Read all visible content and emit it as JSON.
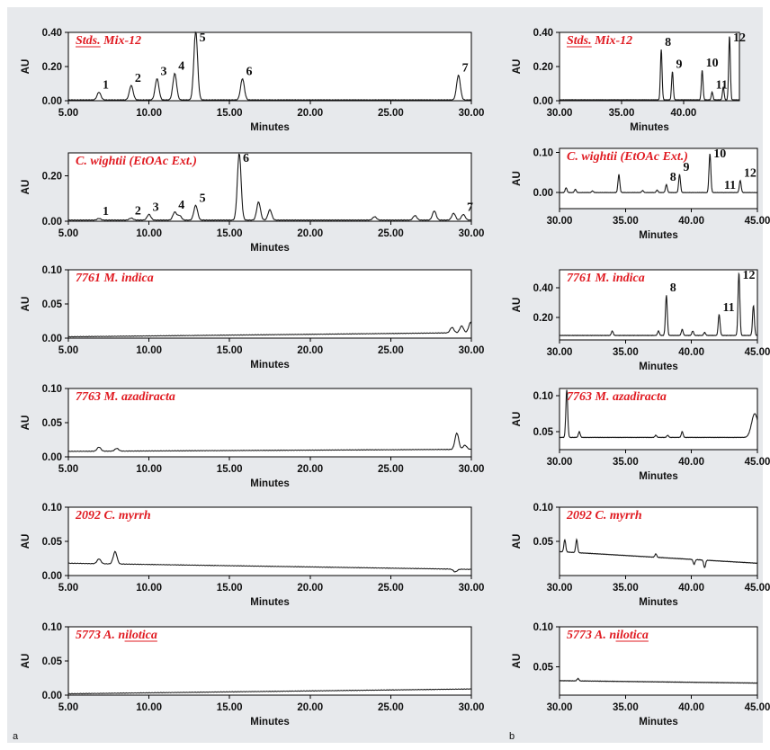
{
  "panel_labels": [
    "a",
    "b"
  ],
  "chart_data": [
    {
      "type": "line",
      "panel": "a",
      "title": "Stds. Mix-12",
      "xlabel": "Minutes",
      "ylabel": "AU",
      "xlim": [
        5,
        30
      ],
      "ylim": [
        0,
        0.4
      ],
      "xticks": [
        "5.00",
        "10.00",
        "15.00",
        "20.00",
        "25.00",
        "30.00"
      ],
      "yticks": [
        "0.00",
        "0.20",
        "0.40"
      ],
      "baseline": 0.005,
      "peaks": [
        {
          "label": "1",
          "x": 6.9,
          "y": 0.05
        },
        {
          "label": "2",
          "x": 8.9,
          "y": 0.09
        },
        {
          "label": "3",
          "x": 10.5,
          "y": 0.13
        },
        {
          "label": "4",
          "x": 11.6,
          "y": 0.16
        },
        {
          "label": "5",
          "x": 12.9,
          "y": 0.41
        },
        {
          "label": "6",
          "x": 15.8,
          "y": 0.13
        },
        {
          "label": "7",
          "x": 29.2,
          "y": 0.15
        }
      ],
      "minor": []
    },
    {
      "type": "line",
      "panel": "a",
      "title": "C. wightii (EtOAc Ext.)",
      "xlabel": "Minutes",
      "ylabel": "AU",
      "xlim": [
        5,
        30
      ],
      "ylim": [
        0,
        0.3
      ],
      "xticks": [
        "5.00",
        "10.00",
        "15.00",
        "20.00",
        "25.00",
        "30.00"
      ],
      "yticks": [
        "0.00",
        "0.20"
      ],
      "baseline": 0.005,
      "peaks": [
        {
          "label": "1",
          "x": 6.9,
          "y": 0.012
        },
        {
          "label": "2",
          "x": 8.9,
          "y": 0.014
        },
        {
          "label": "3",
          "x": 10.0,
          "y": 0.03
        },
        {
          "label": "4",
          "x": 11.6,
          "y": 0.04
        },
        {
          "label": "5",
          "x": 12.9,
          "y": 0.07
        },
        {
          "label": "6",
          "x": 15.6,
          "y": 0.3
        },
        {
          "label": "7",
          "x": 29.5,
          "y": 0.03
        }
      ],
      "minor": [
        {
          "x": 11.9,
          "y": 0.025
        },
        {
          "x": 16.8,
          "y": 0.085
        },
        {
          "x": 17.5,
          "y": 0.05
        },
        {
          "x": 24.0,
          "y": 0.02
        },
        {
          "x": 26.5,
          "y": 0.025
        },
        {
          "x": 27.7,
          "y": 0.045
        },
        {
          "x": 28.9,
          "y": 0.035
        }
      ]
    },
    {
      "type": "line",
      "panel": "a",
      "title": "7761 M. indica",
      "xlabel": "Minutes",
      "ylabel": "AU",
      "xlim": [
        5,
        30
      ],
      "ylim": [
        0,
        0.1
      ],
      "xticks": [
        "5.00",
        "10.00",
        "15.00",
        "20.00",
        "25.00",
        "30.00"
      ],
      "yticks": [
        "0.00",
        "0.05",
        "0.10"
      ],
      "baseline": 0.002,
      "drift": 0.006,
      "peaks": [],
      "minor": [
        {
          "x": 28.8,
          "y": 0.01
        },
        {
          "x": 29.4,
          "y": 0.012
        },
        {
          "x": 29.95,
          "y": 0.017
        }
      ]
    },
    {
      "type": "line",
      "panel": "a",
      "title": "7763 M. azadiracta",
      "xlabel": "Minutes",
      "ylabel": "AU",
      "xlim": [
        5,
        30
      ],
      "ylim": [
        0,
        0.1
      ],
      "xticks": [
        "5.00",
        "10.00",
        "15.00",
        "20.00",
        "25.00",
        "30.00"
      ],
      "yticks": [
        "0.00",
        "0.05",
        "0.10"
      ],
      "baseline": 0.008,
      "drift": 0.003,
      "peaks": [],
      "minor": [
        {
          "x": 6.9,
          "y": 0.014
        },
        {
          "x": 8.0,
          "y": 0.012
        },
        {
          "x": 29.1,
          "y": 0.032
        },
        {
          "x": 29.6,
          "y": 0.014
        }
      ]
    },
    {
      "type": "line",
      "panel": "a",
      "title": "2092 C. myrrh",
      "xlabel": "Minutes",
      "ylabel": "AU",
      "xlim": [
        5,
        30
      ],
      "ylim": [
        0,
        0.1
      ],
      "xticks": [
        "5.00",
        "10.00",
        "15.00",
        "20.00",
        "25.00",
        "30.00"
      ],
      "yticks": [
        "0.00",
        "0.05",
        "0.10"
      ],
      "baseline": 0.018,
      "drift": -0.009,
      "peaks": [],
      "minor": [
        {
          "x": 6.9,
          "y": 0.025
        },
        {
          "x": 7.9,
          "y": 0.036
        },
        {
          "x": 12.9,
          "y": 0.018
        },
        {
          "x": 29.0,
          "y": 0.014
        }
      ]
    },
    {
      "type": "line",
      "panel": "a",
      "title": "5773 A. nilotica",
      "xlabel": "Minutes",
      "ylabel": "AU",
      "xlim": [
        5,
        30
      ],
      "ylim": [
        0,
        0.1
      ],
      "xticks": [
        "5.00",
        "10.00",
        "15.00",
        "20.00",
        "25.00",
        "30.00"
      ],
      "yticks": [
        "0.00",
        "0.05",
        "0.10"
      ],
      "baseline": 0.002,
      "drift": 0.007,
      "peaks": [],
      "minor": []
    },
    {
      "type": "line",
      "panel": "b",
      "title": "Stds. Mix-12",
      "xlabel": "Minutes",
      "ylabel": "AU",
      "xlim": [
        30,
        44.5
      ],
      "ylim": [
        0,
        0.4
      ],
      "xticks": [
        "30.00",
        "35.00",
        "40.00"
      ],
      "yticks": [
        "0.00",
        "0.20",
        "0.40"
      ],
      "baseline": 0.005,
      "peaks": [
        {
          "label": "8",
          "x": 38.2,
          "y": 0.3
        },
        {
          "label": "9",
          "x": 39.1,
          "y": 0.17
        },
        {
          "label": "10",
          "x": 41.5,
          "y": 0.18
        },
        {
          "label": "11",
          "x": 42.3,
          "y": 0.05
        },
        {
          "label": "12",
          "x": 43.7,
          "y": 0.38
        }
      ],
      "minor": [
        {
          "x": 43.2,
          "y": 0.08
        }
      ]
    },
    {
      "type": "line",
      "panel": "b",
      "title": "C. wightii (EtOAc Ext.)",
      "xlabel": "Minutes",
      "ylabel": "AU",
      "xlim": [
        30,
        45
      ],
      "ylim": [
        -0.04,
        0.11
      ],
      "xticks": [
        "30.00",
        "35.00",
        "40.00",
        "45.00"
      ],
      "yticks": [
        "0.00",
        "0.10"
      ],
      "baseline": 0.0,
      "peaks": [
        {
          "label": "8",
          "x": 38.1,
          "y": 0.02
        },
        {
          "label": "9",
          "x": 39.1,
          "y": 0.045
        },
        {
          "label": "10",
          "x": 41.4,
          "y": 0.097
        },
        {
          "label": "11",
          "x": 42.2,
          "y": 0.0
        },
        {
          "label": "12",
          "x": 43.7,
          "y": 0.03
        }
      ],
      "minor": [
        {
          "x": 30.5,
          "y": 0.012
        },
        {
          "x": 31.2,
          "y": 0.008
        },
        {
          "x": 32.5,
          "y": 0.004
        },
        {
          "x": 34.5,
          "y": 0.045
        },
        {
          "x": 36.3,
          "y": 0.005
        },
        {
          "x": 37.4,
          "y": 0.006
        }
      ]
    },
    {
      "type": "line",
      "panel": "b",
      "title": "7761 M. indica",
      "xlabel": "Minutes",
      "ylabel": "AU",
      "xlim": [
        30,
        45
      ],
      "ylim": [
        0.05,
        0.52
      ],
      "xticks": [
        "30.00",
        "35.00",
        "40.00",
        "45.00"
      ],
      "yticks": [
        "0.20",
        "0.40"
      ],
      "baseline": 0.08,
      "peaks": [
        {
          "label": "8",
          "x": 38.1,
          "y": 0.35
        },
        {
          "label": "11",
          "x": 42.1,
          "y": 0.22
        },
        {
          "label": "12",
          "x": 43.6,
          "y": 0.5
        }
      ],
      "minor": [
        {
          "x": 34.0,
          "y": 0.11
        },
        {
          "x": 37.5,
          "y": 0.11
        },
        {
          "x": 39.3,
          "y": 0.12
        },
        {
          "x": 40.1,
          "y": 0.11
        },
        {
          "x": 41.0,
          "y": 0.1
        },
        {
          "x": 44.7,
          "y": 0.28
        }
      ]
    },
    {
      "type": "line",
      "panel": "b",
      "title": "7763 M. azadiracta",
      "xlabel": "Minutes",
      "ylabel": "AU",
      "xlim": [
        30,
        45
      ],
      "ylim": [
        0.025,
        0.11
      ],
      "xticks": [
        "30.00",
        "35.00",
        "40.00",
        "45.00"
      ],
      "yticks": [
        "0.05",
        "0.10"
      ],
      "baseline": 0.042,
      "peaks": [],
      "minor": [
        {
          "x": 30.55,
          "y": 0.108
        },
        {
          "x": 31.5,
          "y": 0.05
        },
        {
          "x": 37.3,
          "y": 0.045
        },
        {
          "x": 38.2,
          "y": 0.045
        },
        {
          "x": 39.3,
          "y": 0.05
        },
        {
          "x": 44.8,
          "y": 0.075
        }
      ]
    },
    {
      "type": "line",
      "panel": "b",
      "title": "2092 C. myrrh",
      "xlabel": "Minutes",
      "ylabel": "AU",
      "xlim": [
        30,
        45
      ],
      "ylim": [
        0.0,
        0.1
      ],
      "xticks": [
        "30.00",
        "35.00",
        "40.00",
        "45.00"
      ],
      "yticks": [
        "0.05",
        "0.10"
      ],
      "baseline": 0.035,
      "drift": -0.017,
      "peaks": [],
      "minor": [
        {
          "x": 30.4,
          "y": 0.053
        },
        {
          "x": 31.3,
          "y": 0.054
        },
        {
          "x": 37.3,
          "y": 0.04
        },
        {
          "x": 40.2,
          "y": 0.028
        },
        {
          "x": 41.0,
          "y": 0.024
        }
      ]
    },
    {
      "type": "line",
      "panel": "b",
      "title": "5773 A. nilotica",
      "xlabel": "Minutes",
      "ylabel": "AU",
      "xlim": [
        30,
        45
      ],
      "ylim": [
        0.015,
        0.1
      ],
      "xticks": [
        "30.00",
        "35.00",
        "40.00",
        "45.00"
      ],
      "yticks": [
        "0.05",
        "0.10"
      ],
      "baseline": 0.033,
      "drift": -0.003,
      "peaks": [],
      "minor": [
        {
          "x": 31.4,
          "y": 0.036
        }
      ]
    }
  ]
}
